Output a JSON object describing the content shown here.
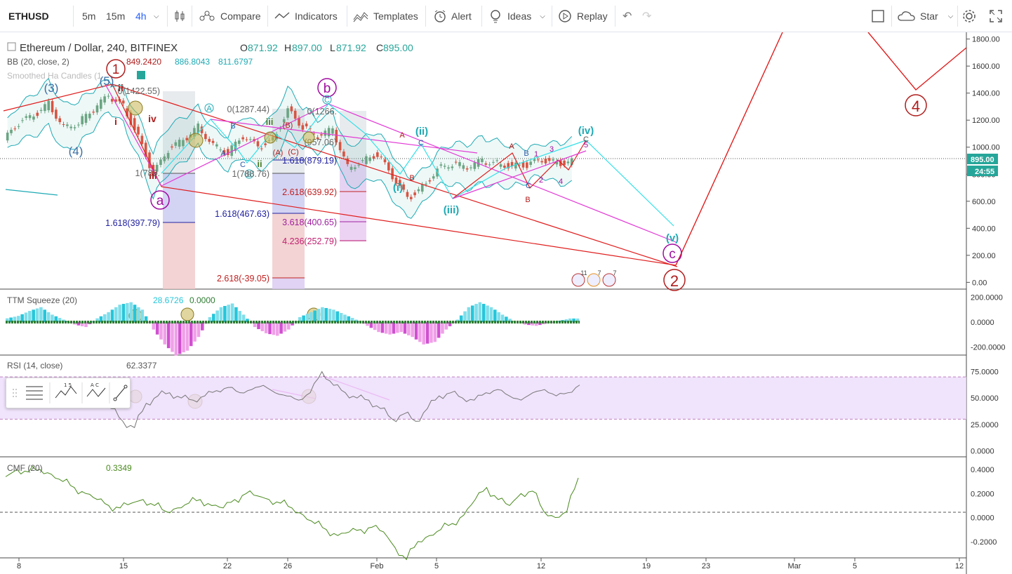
{
  "toolbar": {
    "symbol": "ETHUSD",
    "intervals": [
      "5m",
      "15m",
      "4h"
    ],
    "compare": "Compare",
    "indicators": "Indicators",
    "templates": "Templates",
    "alert": "Alert",
    "ideas": "Ideas",
    "replay": "Replay",
    "star": "Star"
  },
  "legend": {
    "title": "Ethereum / Dollar, 240, BITFINEX",
    "o_label": "O",
    "o": "871.92",
    "h_label": "H",
    "h": "897.00",
    "l_label": "L",
    "l": "871.92",
    "c_label": "C",
    "c": "895.00",
    "bb_label": "BB (20, close, 2)",
    "bb_values": [
      "849.2420",
      "886.8043",
      "811.6797"
    ],
    "ha_label": "Smoothed Ha Candles (1",
    "ttm_label": "TTM Squeeze (20)",
    "ttm_values": [
      "28.6726",
      "0.0000"
    ],
    "rsi_label": "RSI (14, close)",
    "rsi_value": "62.3377",
    "cmf_label": "CMF (20)",
    "cmf_value": "0.3349"
  },
  "price_tag": "895.00",
  "time_tag": "24:55",
  "colors": {
    "up": "#6ba583",
    "down": "#d75442",
    "red": "#e01e1e",
    "cyan": "#33e0e8",
    "magenta": "#e23ad6",
    "purple": "#a00ca0",
    "teal": "#1eaab4",
    "olive": "#c8b450"
  },
  "chart_data": [
    {
      "type": "line",
      "name": "Ethereum / Dollar, 240, BITFINEX",
      "x_ticks": [
        "8",
        "15",
        "22",
        "26",
        "Feb",
        "5",
        "12",
        "19",
        "23",
        "Mar",
        "5",
        "12"
      ],
      "y_ticks": [
        "1800.00",
        "1600.00",
        "1400.00",
        "1200.00",
        "1000.00",
        "800.00",
        "600.00",
        "400.00",
        "200.00",
        "0.00"
      ],
      "ylim": [
        -50,
        1850
      ],
      "series": [
        {
          "x_days": [
            0,
            1,
            2,
            3,
            4,
            5,
            6,
            7,
            8,
            9,
            10,
            11,
            12,
            13,
            14,
            15,
            16,
            17,
            18,
            19,
            20,
            21,
            22,
            23,
            24,
            25,
            26,
            27,
            28,
            29,
            30,
            31,
            32,
            33,
            34,
            35,
            36,
            37,
            38
          ],
          "values": [
            1050,
            1180,
            1230,
            1320,
            1150,
            1180,
            1280,
            1380,
            1300,
            1080,
            800,
            980,
            1050,
            1150,
            1020,
            960,
            1080,
            1000,
            1050,
            1280,
            1150,
            1080,
            1130,
            850,
            900,
            950,
            780,
            620,
            700,
            840,
            880,
            850,
            900,
            880,
            860,
            870,
            900,
            880,
            895
          ]
        }
      ],
      "fib_levels": [
        {
          "label": "1.618(397.79)",
          "value": 397.79
        },
        {
          "label": "1.618(467.63)",
          "value": 467.63
        },
        {
          "label": "2.618(-39.05)",
          "value": -39.05
        },
        {
          "label": "1.618(879.19)",
          "value": 879.19
        },
        {
          "label": "2.618(639.92)",
          "value": 639.92
        },
        {
          "label": "3.618(400.65)",
          "value": 400.65
        },
        {
          "label": "4.236(252.79)",
          "value": 252.79
        },
        {
          "label": "0(1287.44)",
          "value": 1287.44
        },
        {
          "label": "0(1266.",
          "value": 1266
        },
        {
          "label": "1(789.",
          "value": 789
        },
        {
          "label": "1(788.76)",
          "value": 788.76
        },
        {
          "label": "0(1422.55)",
          "value": 1422.55
        },
        {
          "label": "(957.06)",
          "value": 957.06
        }
      ],
      "wave_labels": [
        "1",
        "2",
        "4",
        "(3)",
        "(4)",
        "(5)",
        "a",
        "b",
        "c",
        "i",
        "ii",
        "iii",
        "iv",
        "(i)",
        "(ii)",
        "(iii)",
        "(iv)",
        "(v)",
        "A",
        "B",
        "C",
        "(A)",
        "(B)",
        "(C)",
        "1",
        "2",
        "3",
        "4",
        "5"
      ],
      "event_counts": [
        "11",
        "7",
        "7"
      ]
    },
    {
      "type": "bar",
      "name": "TTM Squeeze (20)",
      "y_ticks": [
        "200.0000",
        "0.0000",
        "-200.0000"
      ],
      "ylim": [
        -260,
        260
      ],
      "values": [
        30,
        50,
        90,
        120,
        60,
        20,
        -20,
        -40,
        30,
        80,
        140,
        160,
        100,
        -60,
        -180,
        -270,
        -230,
        -120,
        40,
        120,
        150,
        60,
        -40,
        -90,
        -110,
        -60,
        40,
        80,
        120,
        100,
        60,
        20,
        -30,
        -80,
        -100,
        -80,
        -120,
        -180,
        -160,
        -60,
        20,
        120,
        160,
        120,
        60,
        10,
        -20,
        -30,
        -10,
        10,
        28.67
      ]
    },
    {
      "type": "line",
      "name": "RSI (14, close)",
      "y_ticks": [
        "75.0000",
        "50.0000",
        "25.0000",
        "0.0000"
      ],
      "ylim": [
        -5,
        90
      ],
      "band": [
        30,
        70
      ],
      "values": [
        62,
        55,
        58,
        60,
        54,
        56,
        58,
        55,
        48,
        40,
        28,
        22,
        45,
        52,
        55,
        50,
        48,
        52,
        57,
        60,
        55,
        58,
        62,
        55,
        52,
        48,
        55,
        75,
        62,
        55,
        50,
        48,
        40,
        30,
        35,
        28,
        40,
        52,
        55,
        50,
        48,
        55,
        58,
        52,
        48,
        55,
        58,
        52,
        55,
        62.34
      ]
    },
    {
      "type": "line",
      "name": "CMF (20)",
      "y_ticks": [
        "0.4000",
        "0.2000",
        "0.0000",
        "-0.2000"
      ],
      "ylim": [
        -0.33,
        0.5
      ],
      "values": [
        0.34,
        0.4,
        0.38,
        0.4,
        0.36,
        0.3,
        0.25,
        0.2,
        0.15,
        0.1,
        0.08,
        0.12,
        0.15,
        0.1,
        0.05,
        0.08,
        0.12,
        0.15,
        0.1,
        0.08,
        0.15,
        0.2,
        0.18,
        0.15,
        0.12,
        0.08,
        0.02,
        -0.05,
        -0.1,
        -0.15,
        -0.12,
        -0.1,
        -0.08,
        -0.12,
        -0.25,
        -0.35,
        -0.2,
        -0.15,
        -0.1,
        -0.05,
        0.02,
        0.15,
        0.25,
        0.15,
        0.1,
        0.2,
        0.22,
        0.05,
        0.0,
        0.05,
        0.33
      ]
    }
  ]
}
